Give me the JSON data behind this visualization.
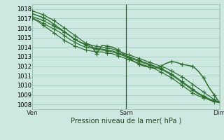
{
  "title": "Pression niveau de la mer( hPa )",
  "ylabel_ticks": [
    1008,
    1009,
    1010,
    1011,
    1012,
    1013,
    1014,
    1015,
    1016,
    1017,
    1018
  ],
  "ylim": [
    1007.5,
    1018.5
  ],
  "xlim": [
    0,
    48
  ],
  "xtick_positions": [
    0,
    24,
    48
  ],
  "xtick_labels": [
    "Ven",
    "Sam",
    "Dim"
  ],
  "bg_color": "#cce8e0",
  "grid_color": "#99ccbb",
  "line_color": "#2d6e2d",
  "vline_color": "#335533",
  "tick_color": "#333333",
  "xlabel_color": "#224422",
  "marker": "+",
  "markersize": 4.0,
  "linewidth": 0.9,
  "series": [
    [
      1017.8,
      1017.6,
      1017.4,
      1017.1,
      1016.8,
      1016.4,
      1016.0,
      1015.6,
      1015.2,
      1014.8,
      1014.4,
      1014.2,
      1014.1,
      1014.0,
      1013.9,
      1013.8,
      1013.6,
      1013.4,
      1013.2,
      1013.0,
      1012.8,
      1012.6,
      1012.4,
      1012.2,
      1012.0,
      1011.8,
      1011.5,
      1011.2,
      1010.9,
      1010.5,
      1010.1,
      1009.7,
      1009.3,
      1008.9,
      1008.5,
      1008.2
    ],
    [
      1017.2,
      1017.0,
      1016.8,
      1016.5,
      1016.2,
      1015.9,
      1015.6,
      1015.2,
      1014.8,
      1014.5,
      1014.2,
      1014.0,
      1013.9,
      1013.8,
      1013.7,
      1013.6,
      1013.4,
      1013.2,
      1013.0,
      1012.8,
      1012.6,
      1012.4,
      1012.2,
      1012.0,
      1011.8,
      1011.5,
      1011.2,
      1010.8,
      1010.4,
      1010.0,
      1009.6,
      1009.2,
      1008.9,
      1008.6,
      1008.4,
      1008.2
    ],
    [
      1017.0,
      1016.8,
      1016.5,
      1016.2,
      1015.9,
      1015.6,
      1015.2,
      1014.8,
      1014.5,
      1014.2,
      1014.0,
      1013.9,
      1013.8,
      1013.7,
      1013.6,
      1013.5,
      1013.3,
      1013.1,
      1012.9,
      1012.7,
      1012.5,
      1012.3,
      1012.1,
      1011.9,
      1011.7,
      1011.4,
      1011.1,
      1010.7,
      1010.3,
      1009.9,
      1009.5,
      1009.1,
      1008.8,
      1008.5,
      1008.3,
      1008.2
    ],
    [
      1017.0,
      1016.7,
      1016.3,
      1015.9,
      1015.5,
      1015.1,
      1014.7,
      1014.4,
      1014.1,
      1013.9,
      1013.7,
      1013.6,
      1013.5,
      1013.5,
      1013.4,
      1013.3,
      1013.1,
      1012.9,
      1012.7,
      1012.5,
      1012.3,
      1012.1,
      1011.9,
      1011.7,
      1011.4,
      1011.1,
      1010.8,
      1010.4,
      1010.0,
      1009.6,
      1009.2,
      1008.9,
      1008.7,
      1008.5,
      1008.3,
      1008.2
    ],
    [
      1017.5,
      1017.3,
      1017.1,
      1016.8,
      1016.4,
      1016.0,
      1015.6,
      1015.2,
      1014.8,
      1014.5,
      1014.3,
      1014.2,
      1013.3,
      1014.2,
      1014.1,
      1014.0,
      1013.7,
      1013.3,
      1012.9,
      1012.5,
      1012.2,
      1012.0,
      1011.9,
      1011.8,
      1012.0,
      1012.3,
      1012.5,
      1012.4,
      1012.2,
      1012.1,
      1012.0,
      1011.5,
      1010.8,
      1009.8,
      1009.0,
      1008.2
    ]
  ]
}
